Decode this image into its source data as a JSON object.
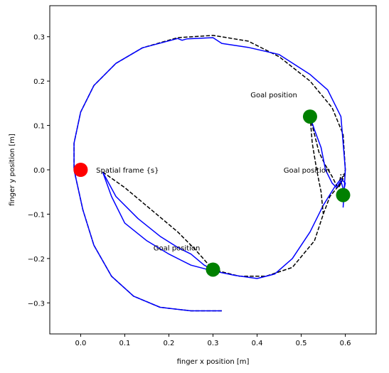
{
  "chart_data": {
    "type": "scatter",
    "title": "",
    "xlabel": "finger x position [m]",
    "ylabel": "finger y position [m]",
    "xlim": [
      -0.07,
      0.67
    ],
    "ylim": [
      -0.37,
      0.37
    ],
    "grid": false,
    "xticks": [
      {
        "value": 0.0,
        "label": "0.0"
      },
      {
        "value": 0.1,
        "label": "0.1"
      },
      {
        "value": 0.2,
        "label": "0.2"
      },
      {
        "value": 0.3,
        "label": "0.3"
      },
      {
        "value": 0.4,
        "label": "0.4"
      },
      {
        "value": 0.5,
        "label": "0.5"
      },
      {
        "value": 0.6,
        "label": "0.6"
      }
    ],
    "yticks": [
      {
        "value": -0.3,
        "label": "−0.3"
      },
      {
        "value": -0.2,
        "label": "−0.2"
      },
      {
        "value": -0.1,
        "label": "−0.1"
      },
      {
        "value": 0.0,
        "label": "0.0"
      },
      {
        "value": 0.1,
        "label": "0.1"
      },
      {
        "value": 0.2,
        "label": "0.2"
      },
      {
        "value": 0.3,
        "label": "0.3"
      }
    ],
    "series": [
      {
        "style": "dashed",
        "color": "#000000",
        "x": [
          0.32,
          0.25,
          0.18,
          0.12,
          0.07,
          0.03,
          0.005,
          -0.015,
          -0.015,
          0.0,
          0.03,
          0.08,
          0.14,
          0.22,
          0.3,
          0.38,
          0.45,
          0.52,
          0.57,
          0.595,
          0.6,
          0.595,
          0.585
        ],
        "y": [
          -0.318,
          -0.318,
          -0.31,
          -0.285,
          -0.24,
          -0.17,
          -0.09,
          0.0,
          0.06,
          0.13,
          0.19,
          0.24,
          0.275,
          0.298,
          0.303,
          0.29,
          0.255,
          0.2,
          0.14,
          0.08,
          0.0,
          -0.02,
          -0.04
        ]
      },
      {
        "style": "solid",
        "color": "#0000ff",
        "x": [
          0.32,
          0.25,
          0.18,
          0.12,
          0.07,
          0.03,
          0.005,
          -0.015,
          -0.015,
          0.0,
          0.03,
          0.08,
          0.14,
          0.22,
          0.23,
          0.24,
          0.3,
          0.32,
          0.38,
          0.45,
          0.52,
          0.56,
          0.59,
          0.6,
          0.595
        ],
        "y": [
          -0.318,
          -0.318,
          -0.31,
          -0.285,
          -0.24,
          -0.17,
          -0.09,
          0.0,
          0.06,
          0.13,
          0.19,
          0.24,
          0.275,
          0.296,
          0.292,
          0.295,
          0.298,
          0.285,
          0.276,
          0.26,
          0.215,
          0.18,
          0.12,
          0.0,
          -0.085
        ]
      },
      {
        "style": "dashed",
        "color": "#000000",
        "x": [
          0.05,
          0.1,
          0.16,
          0.22,
          0.26,
          0.3,
          0.36,
          0.42,
          0.48,
          0.53,
          0.55,
          0.565,
          0.59,
          0.595
        ],
        "y": [
          -0.005,
          -0.04,
          -0.09,
          -0.14,
          -0.18,
          -0.225,
          -0.24,
          -0.24,
          -0.22,
          -0.16,
          -0.1,
          -0.06,
          -0.03,
          -0.01
        ]
      },
      {
        "style": "solid",
        "color": "#0000ff",
        "x": [
          0.05,
          0.07,
          0.1,
          0.15,
          0.2,
          0.25,
          0.3,
          0.35,
          0.4,
          0.44,
          0.48,
          0.52,
          0.55,
          0.575,
          0.59,
          0.6,
          0.595
        ],
        "y": [
          -0.005,
          -0.06,
          -0.12,
          -0.16,
          -0.19,
          -0.215,
          -0.228,
          -0.238,
          -0.245,
          -0.235,
          -0.2,
          -0.14,
          -0.08,
          -0.04,
          -0.02,
          -0.03,
          -0.055
        ]
      },
      {
        "style": "dashed",
        "color": "#000000",
        "x": [
          0.52,
          0.53,
          0.54,
          0.555,
          0.57,
          0.58,
          0.585,
          0.59
        ],
        "y": [
          0.12,
          0.08,
          0.04,
          0.01,
          -0.015,
          -0.035,
          -0.04,
          -0.01
        ]
      },
      {
        "style": "dashed",
        "color": "#000000",
        "x": [
          0.52,
          0.525,
          0.535,
          0.545,
          0.55
        ],
        "y": [
          0.12,
          0.06,
          0.0,
          -0.05,
          -0.1
        ]
      },
      {
        "style": "solid",
        "color": "#0000ff",
        "x": [
          0.52,
          0.53,
          0.545,
          0.555,
          0.57,
          0.58,
          0.59,
          0.6
        ],
        "y": [
          0.12,
          0.09,
          0.05,
          0.0,
          -0.03,
          -0.04,
          -0.025,
          -0.06
        ]
      },
      {
        "style": "solid",
        "color": "#0000ff",
        "x": [
          0.05,
          0.08,
          0.13,
          0.18,
          0.22,
          0.25,
          0.28,
          0.3
        ],
        "y": [
          -0.005,
          -0.06,
          -0.11,
          -0.15,
          -0.175,
          -0.19,
          -0.215,
          -0.225
        ]
      }
    ],
    "markers": [
      {
        "label": "Spatial frame {s}",
        "x": 0.0,
        "y": 0.0,
        "color": "#ff0000",
        "label_dx": 0.035,
        "label_dy": 0.0
      },
      {
        "label": "Goal position",
        "x": 0.52,
        "y": 0.12,
        "color": "#008000",
        "label_dx": -0.135,
        "label_dy": 0.05
      },
      {
        "label": "Goal position",
        "x": 0.595,
        "y": -0.057,
        "color": "#008000",
        "label_dx": -0.135,
        "label_dy": 0.057
      },
      {
        "label": "Goal position",
        "x": 0.3,
        "y": -0.225,
        "color": "#008000",
        "label_dx": -0.135,
        "label_dy": 0.05
      }
    ]
  }
}
